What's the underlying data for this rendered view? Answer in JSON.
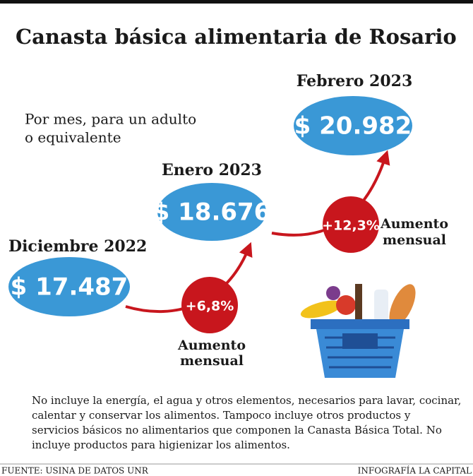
{
  "header": {
    "title": "Canasta básica alimentaria de Rosario",
    "subtitle": [
      "Por mes, para un adulto",
      "o equivalente"
    ]
  },
  "periods": [
    {
      "label": "Diciembre 2022",
      "value": "$ 17.487"
    },
    {
      "label": "Enero 2023",
      "value": "$ 18.676"
    },
    {
      "label": "Febrero 2023",
      "value": "$ 20.982"
    }
  ],
  "increases": [
    {
      "value": "+6,8%",
      "caption": [
        "Aumento",
        "mensual"
      ]
    },
    {
      "value": "+12,3%",
      "caption": [
        "Aumento",
        "mensual"
      ]
    }
  ],
  "note": [
    "No incluye la energía, el agua y otros elementos, necesarios para lavar, cocinar,",
    "calentar y conservar los alimentos. Tampoco incluye otros productos y",
    "servicios básicos no alimentarios que componen la Canasta Básica Total. No",
    "incluye productos para higienizar los alimentos."
  ],
  "footer": {
    "source": "FUENTE: USINA DE DATOS UNR",
    "credit": "INFOGRAFÍA LA CAPITAL"
  }
}
